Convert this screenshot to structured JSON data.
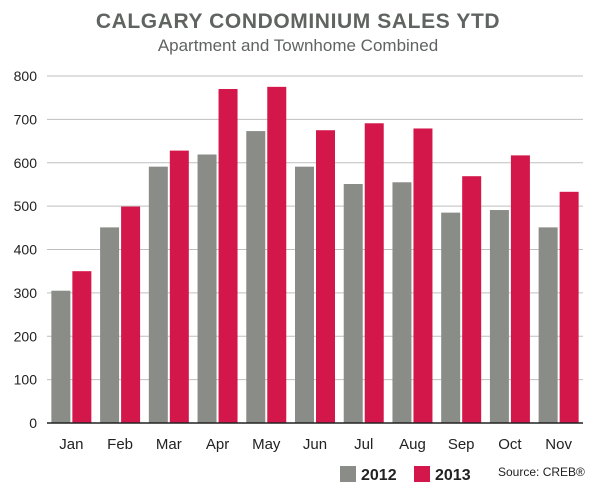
{
  "chart_data": {
    "type": "bar",
    "title": "CALGARY CONDOMINIUM SALES YTD",
    "subtitle": "Apartment and Townhome Combined",
    "categories": [
      "Jan",
      "Feb",
      "Mar",
      "Apr",
      "May",
      "Jun",
      "Jul",
      "Aug",
      "Sep",
      "Oct",
      "Nov"
    ],
    "series": [
      {
        "name": "2012",
        "color": "#8a8d87",
        "values": [
          305,
          451,
          591,
          619,
          673,
          591,
          551,
          555,
          485,
          491,
          451
        ]
      },
      {
        "name": "2013",
        "color": "#d4174a",
        "values": [
          350,
          499,
          628,
          770,
          775,
          675,
          691,
          679,
          569,
          617,
          533
        ]
      }
    ],
    "ylim": [
      0,
      800
    ],
    "yticks": [
      "0",
      "100",
      "200",
      "300",
      "400",
      "500",
      "600",
      "700",
      "800"
    ],
    "grid": true,
    "legend_position": "bottom-right",
    "source": "Source: CREB®",
    "colors": {
      "title": "#5f6461",
      "text": "#222222",
      "grid": "#bfbfbf",
      "axis": "#222222"
    }
  }
}
